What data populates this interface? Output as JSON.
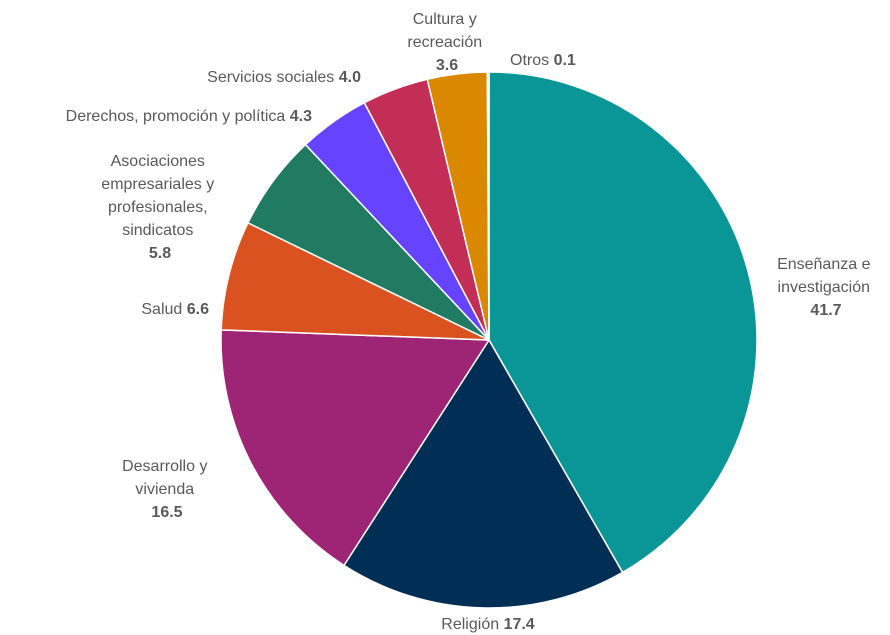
{
  "chart_data": {
    "type": "pie",
    "title": "",
    "unit": "",
    "slices": [
      {
        "name": "Enseñanza e investigación",
        "value": 41.7,
        "value_label": "41.7",
        "color": "#0A9597"
      },
      {
        "name": "Religión",
        "value": 17.4,
        "value_label": "17.4",
        "color": "#002E54"
      },
      {
        "name": "Desarrollo y vivienda",
        "value": 16.5,
        "value_label": "16.5",
        "color": "#9E2575"
      },
      {
        "name": "Salud",
        "value": 6.6,
        "value_label": "6.6",
        "color": "#DB5221"
      },
      {
        "name": "Asociaciones empresariales y profesionales, sindicatos",
        "value": 5.8,
        "value_label": "5.8",
        "color": "#217B63"
      },
      {
        "name": "Derechos, promoción y política",
        "value": 4.3,
        "value_label": "4.3",
        "color": "#6644FF"
      },
      {
        "name": "Servicios sociales",
        "value": 4.0,
        "value_label": "4.0",
        "color": "#C22E56"
      },
      {
        "name": "Cultura y recreación",
        "value": 3.6,
        "value_label": "3.6",
        "color": "#D98800"
      },
      {
        "name": "Otros",
        "value": 0.1,
        "value_label": "0.1",
        "color": "#8C8C8C"
      }
    ],
    "start_angle": "top",
    "direction": "clockwise",
    "legend": "none"
  },
  "labels": {
    "ensenanza_line1": "Enseñanza e",
    "ensenanza_line2": "investigación",
    "religion": "Religión",
    "desarrollo_line1": "Desarrollo y",
    "desarrollo_line2": "vivienda",
    "salud": "Salud",
    "asoc_line1": "Asociaciones",
    "asoc_line2": "empresariales y",
    "asoc_line3": "profesionales,",
    "asoc_line4": "sindicatos",
    "derechos": "Derechos, promoción y política",
    "servicios": "Servicios sociales",
    "cultura_line1": "Cultura y",
    "cultura_line2": "recreación",
    "otros": "Otros"
  }
}
